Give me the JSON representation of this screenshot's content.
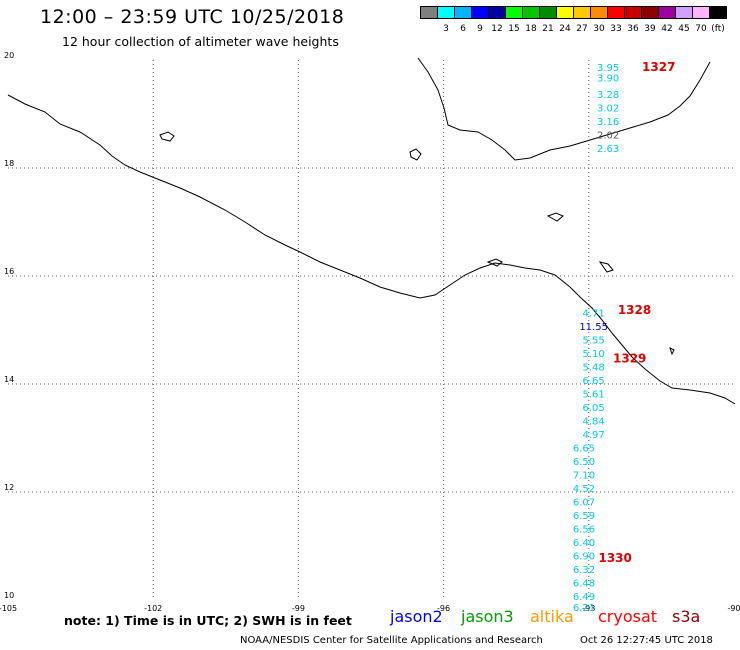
{
  "title": "12:00 – 23:59 UTC 10/25/2018",
  "subtitle": "12 hour collection of altimeter wave heights",
  "legend": {
    "unit": "(ft)",
    "bins": [
      {
        "label": "",
        "color": "#7f7f7f"
      },
      {
        "label": "3",
        "color": "#00ffff"
      },
      {
        "label": "6",
        "color": "#00b4ff"
      },
      {
        "label": "9",
        "color": "#0000ff"
      },
      {
        "label": "12",
        "color": "#0000a0"
      },
      {
        "label": "15",
        "color": "#00ff00"
      },
      {
        "label": "18",
        "color": "#00c800"
      },
      {
        "label": "21",
        "color": "#008c00"
      },
      {
        "label": "24",
        "color": "#ffff00"
      },
      {
        "label": "27",
        "color": "#ffc800"
      },
      {
        "label": "30",
        "color": "#ff8c00"
      },
      {
        "label": "33",
        "color": "#ff0000"
      },
      {
        "label": "36",
        "color": "#c80000"
      },
      {
        "label": "39",
        "color": "#8c0000"
      },
      {
        "label": "42",
        "color": "#a000a0"
      },
      {
        "label": "45",
        "color": "#d2a0ff"
      },
      {
        "label": "70",
        "color": "#ffb4ff"
      },
      {
        "label": "",
        "color": "#000000"
      }
    ]
  },
  "map": {
    "lon_ticks": [
      "-105",
      "-102",
      "-99",
      "-96",
      "-93",
      "-90"
    ],
    "lat_ticks": [
      "20",
      "18",
      "16",
      "14",
      "12",
      "10"
    ],
    "lon_range": [
      -105,
      -90
    ],
    "lat_range": [
      10,
      20
    ]
  },
  "passes": [
    {
      "label": "1327",
      "lon": -91.9,
      "lat": 19.8
    },
    {
      "label": "1328",
      "lon": -92.4,
      "lat": 15.3
    },
    {
      "label": "1329",
      "lon": -92.5,
      "lat": 14.4
    },
    {
      "label": "1330",
      "lon": -92.8,
      "lat": 10.7
    }
  ],
  "measurements": [
    {
      "value": "3.95",
      "color": "#00c8e6",
      "lon": -92.6,
      "lat": 19.8
    },
    {
      "value": "3.90",
      "color": "#00c8e6",
      "lon": -92.6,
      "lat": 19.6
    },
    {
      "value": "3.28",
      "color": "#00c8e6",
      "lon": -92.6,
      "lat": 19.3
    },
    {
      "value": "3.02",
      "color": "#00c8e6",
      "lon": -92.6,
      "lat": 19.05
    },
    {
      "value": "3.16",
      "color": "#00c8e6",
      "lon": -92.6,
      "lat": 18.8
    },
    {
      "value": "2.02",
      "color": "#555555",
      "lon": -92.6,
      "lat": 18.55
    },
    {
      "value": "2.63",
      "color": "#00c8e6",
      "lon": -92.6,
      "lat": 18.3
    },
    {
      "value": "4.71",
      "color": "#00c8e6",
      "lon": -92.9,
      "lat": 15.25
    },
    {
      "value": "11.55",
      "color": "#0000c8",
      "lon": -92.9,
      "lat": 15.0
    },
    {
      "value": "5.55",
      "color": "#00c8e6",
      "lon": -92.9,
      "lat": 14.75
    },
    {
      "value": "5.10",
      "color": "#00c8e6",
      "lon": -92.9,
      "lat": 14.5
    },
    {
      "value": "5.48",
      "color": "#00c8e6",
      "lon": -92.9,
      "lat": 14.25
    },
    {
      "value": "6.65",
      "color": "#00c8e6",
      "lon": -92.9,
      "lat": 14.0
    },
    {
      "value": "5.61",
      "color": "#00c8e6",
      "lon": -92.9,
      "lat": 13.75
    },
    {
      "value": "6.05",
      "color": "#00c8e6",
      "lon": -92.9,
      "lat": 13.5
    },
    {
      "value": "4.84",
      "color": "#00c8e6",
      "lon": -92.9,
      "lat": 13.25
    },
    {
      "value": "4.97",
      "color": "#00c8e6",
      "lon": -92.9,
      "lat": 13.0
    },
    {
      "value": "6.65",
      "color": "#00c8e6",
      "lon": -93.1,
      "lat": 12.75
    },
    {
      "value": "6.50",
      "color": "#00c8e6",
      "lon": -93.1,
      "lat": 12.5
    },
    {
      "value": "7.10",
      "color": "#00c8e6",
      "lon": -93.1,
      "lat": 12.25
    },
    {
      "value": "4.52",
      "color": "#00c8e6",
      "lon": -93.1,
      "lat": 12.0
    },
    {
      "value": "6.07",
      "color": "#00c8e6",
      "lon": -93.1,
      "lat": 11.75
    },
    {
      "value": "6.59",
      "color": "#00c8e6",
      "lon": -93.1,
      "lat": 11.5
    },
    {
      "value": "6.56",
      "color": "#00c8e6",
      "lon": -93.1,
      "lat": 11.25
    },
    {
      "value": "6.40",
      "color": "#00c8e6",
      "lon": -93.1,
      "lat": 11.0
    },
    {
      "value": "6.90",
      "color": "#00c8e6",
      "lon": -93.1,
      "lat": 10.75
    },
    {
      "value": "6.32",
      "color": "#00c8e6",
      "lon": -93.1,
      "lat": 10.5
    },
    {
      "value": "6.48",
      "color": "#00c8e6",
      "lon": -93.1,
      "lat": 10.25
    },
    {
      "value": "6.49",
      "color": "#00c8e6",
      "lon": -93.1,
      "lat": 10.0
    },
    {
      "value": "6.21",
      "color": "#00c8e6",
      "lon": -93.1,
      "lat": 9.8
    }
  ],
  "note": "note: 1) Time is in UTC; 2) SWH is in feet",
  "satellites": [
    {
      "name": "jason2",
      "color": "#0000ff"
    },
    {
      "name": "jason3",
      "color": "#00a000"
    },
    {
      "name": "altika",
      "color": "#ff9900"
    },
    {
      "name": "cryosat",
      "color": "#ff0000"
    },
    {
      "name": "s3a",
      "color": "#8b0000"
    }
  ],
  "credit": "NOAA/NESDIS Center for Satellite Applications and Research",
  "timestamp": "Oct 26 12:27:45 UTC 2018"
}
